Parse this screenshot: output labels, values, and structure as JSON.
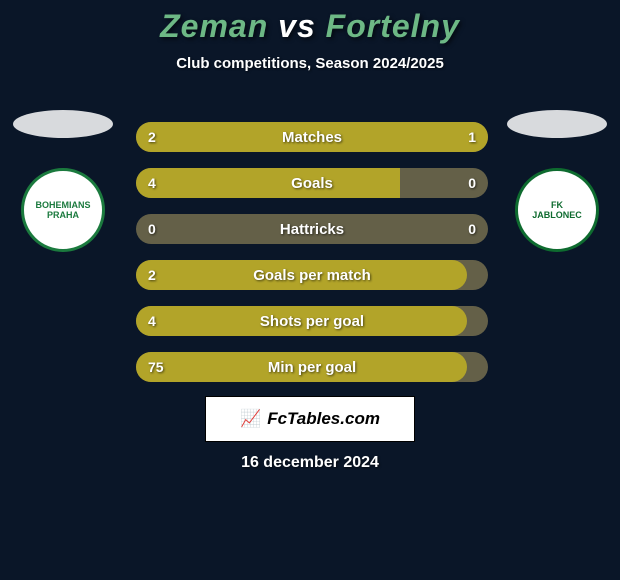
{
  "title": {
    "player1": "Zeman",
    "vs": "vs",
    "player2": "Fortelny",
    "color_player1": "#6db885",
    "color_vs": "#ffffff",
    "color_player2": "#6db885"
  },
  "subtitle": "Club competitions, Season 2024/2025",
  "left_side": {
    "shadow_color": "#d8dadd",
    "logo": {
      "bg": "#ffffff",
      "border": "#1b7a3e",
      "text_color": "#1b7a3e",
      "line1": "BOHEMIANS",
      "line2": "PRAHA"
    }
  },
  "right_side": {
    "shadow_color": "#d8dadd",
    "logo": {
      "bg": "#ffffff",
      "border": "#0e6b2f",
      "text_color": "#0e6b2f",
      "line1": "FK",
      "line2": "JABLONEC"
    }
  },
  "bars": {
    "track_color": "#646048",
    "fill_color": "#b2a429",
    "rows": [
      {
        "label": "Matches",
        "left_val": "2",
        "right_val": "1",
        "left_pct": 67,
        "right_pct": 33
      },
      {
        "label": "Goals",
        "left_val": "4",
        "right_val": "0",
        "left_pct": 75,
        "right_pct": 0
      },
      {
        "label": "Hattricks",
        "left_val": "0",
        "right_val": "0",
        "left_pct": 0,
        "right_pct": 0
      },
      {
        "label": "Goals per match",
        "left_val": "2",
        "right_val": "",
        "left_pct": 94,
        "right_pct": 0
      },
      {
        "label": "Shots per goal",
        "left_val": "4",
        "right_val": "",
        "left_pct": 94,
        "right_pct": 0
      },
      {
        "label": "Min per goal",
        "left_val": "75",
        "right_val": "",
        "left_pct": 94,
        "right_pct": 0
      }
    ]
  },
  "watermark": {
    "icon": "📈",
    "text": "FcTables.com"
  },
  "date": "16 december 2024",
  "background_color": "#0a1628"
}
